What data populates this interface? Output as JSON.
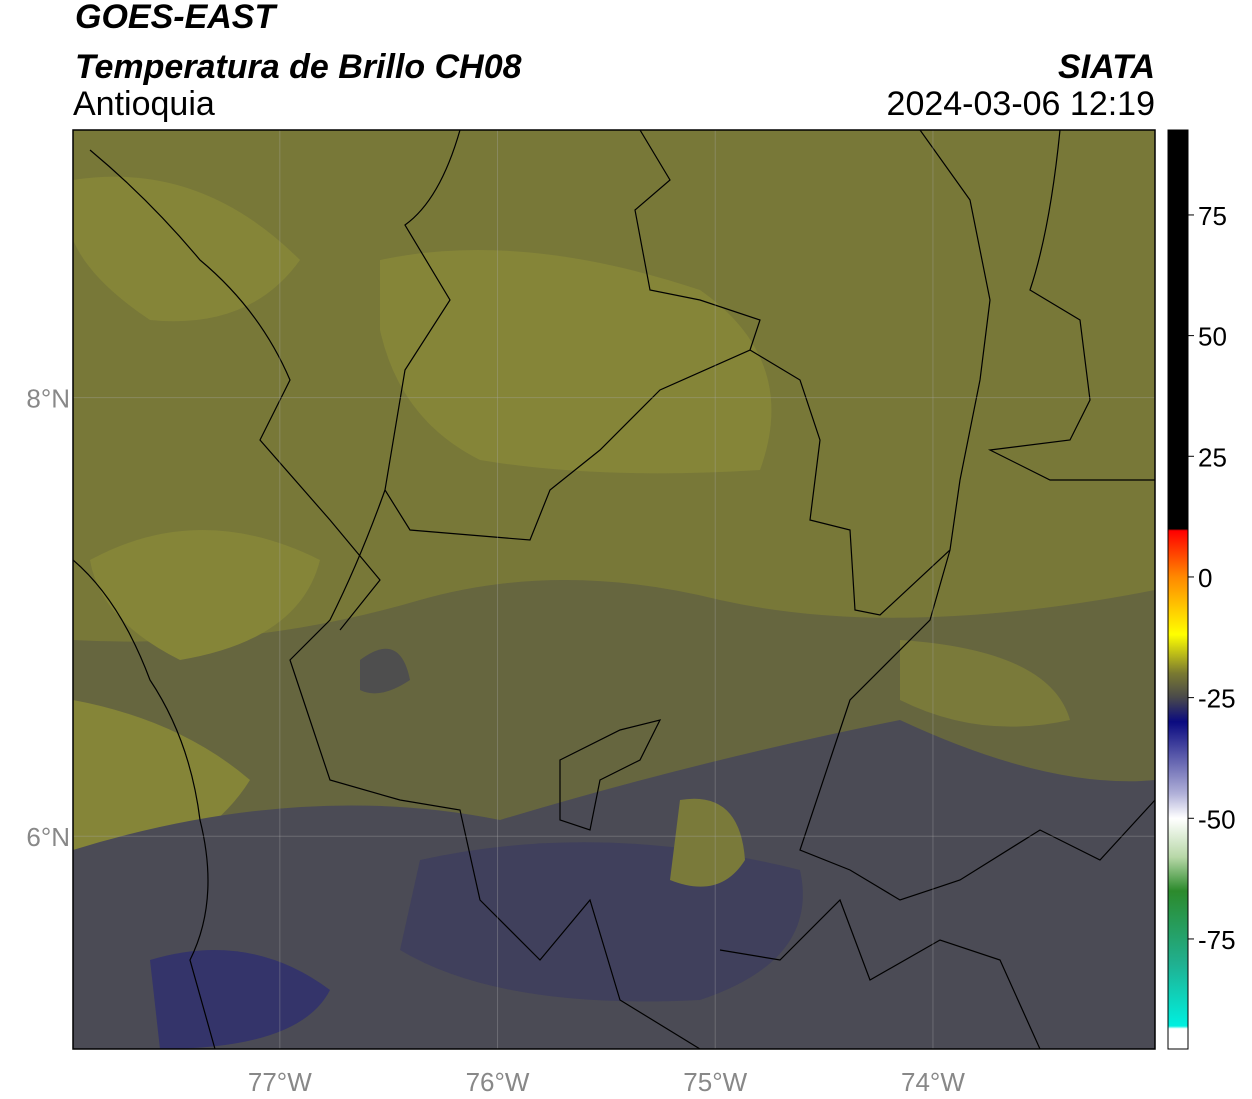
{
  "chart_data": {
    "type": "map",
    "title": "GOES-EAST",
    "subtitle": "Temperatura de Brillo CH08",
    "region": "Antioquia",
    "source": "SIATA",
    "timestamp": "2024-03-06 12:19",
    "xlim": [
      -77.95,
      -72.98
    ],
    "ylim": [
      5.03,
      9.22
    ],
    "xticks": [
      {
        "value": -77,
        "label": "77°W"
      },
      {
        "value": -76,
        "label": "76°W"
      },
      {
        "value": -75,
        "label": "75°W"
      },
      {
        "value": -74,
        "label": "74°W"
      }
    ],
    "yticks": [
      {
        "value": 6,
        "label": "6°N"
      },
      {
        "value": 8,
        "label": "8°N"
      }
    ],
    "grid": true,
    "colorbar": {
      "lim": [
        -97.8,
        92.6
      ],
      "ticks": [
        -75,
        -50,
        -25,
        0,
        25,
        50,
        75
      ]
    }
  }
}
